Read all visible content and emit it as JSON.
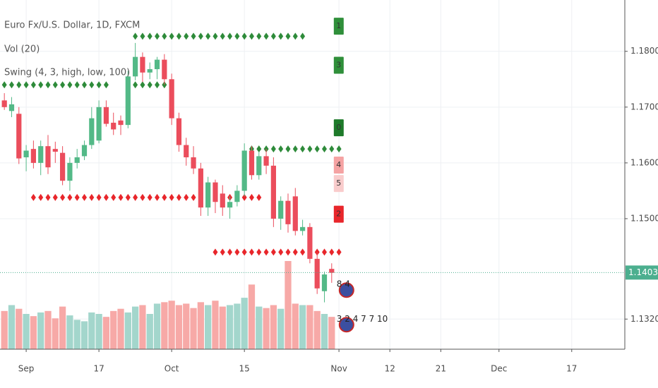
{
  "chart_data": {
    "type": "candlestick",
    "legend": [
      "Euro Fx/U.S. Dollar, 1D, FXCM",
      "Vol (20)",
      "Swing (4, 3, high, low, 100)"
    ],
    "xlim": [
      -3.6,
      82.3
    ],
    "ylim": [
      1.1266,
      1.1892
    ],
    "xticks": [
      {
        "value": 0,
        "label": "Sep"
      },
      {
        "value": 10,
        "label": "17"
      },
      {
        "value": 20,
        "label": "Oct"
      },
      {
        "value": 30,
        "label": "15"
      },
      {
        "value": 43,
        "label": "Nov"
      },
      {
        "value": 50,
        "label": "12"
      },
      {
        "value": 57,
        "label": "21"
      },
      {
        "value": 65,
        "label": "Dec"
      },
      {
        "value": 75,
        "label": "17"
      }
    ],
    "yticks": [
      {
        "value": 1.18,
        "label": "1.18000"
      },
      {
        "value": 1.17,
        "label": "1.17000"
      },
      {
        "value": 1.16,
        "label": "1.16000"
      },
      {
        "value": 1.15,
        "label": "1.15000"
      },
      {
        "value": 1.132,
        "label": "1.13200"
      }
    ],
    "last_price": {
      "value": 1.14034,
      "label": "1.14034",
      "color": "#4caf8f"
    },
    "grid": true,
    "up_color": "#53b987",
    "down_color": "#eb4d5c",
    "volume_up_color": "#a3d6cc",
    "volume_down_color": "#f7a9a7",
    "candles": {
      "x": [
        -3,
        -2,
        -1,
        0,
        1,
        2,
        3,
        4,
        5,
        6,
        7,
        8,
        9,
        10,
        11,
        12,
        13,
        14,
        15,
        16,
        17,
        18,
        19,
        20,
        21,
        22,
        23,
        24,
        25,
        26,
        27,
        28,
        29,
        30,
        31,
        32,
        33,
        34,
        35,
        36,
        37,
        38,
        39,
        40,
        41,
        42
      ],
      "open": [
        1.1712,
        1.1693,
        1.1688,
        1.161,
        1.1625,
        1.16,
        1.163,
        1.1625,
        1.1618,
        1.1568,
        1.16,
        1.1612,
        1.1632,
        1.164,
        1.17,
        1.1672,
        1.1676,
        1.1668,
        1.1755,
        1.179,
        1.1762,
        1.1768,
        1.1785,
        1.175,
        1.168,
        1.1632,
        1.161,
        1.159,
        1.152,
        1.1565,
        1.1545,
        1.152,
        1.153,
        1.155,
        1.1622,
        1.1578,
        1.1612,
        1.1595,
        1.15,
        1.1532,
        1.154,
        1.1478,
        1.1485,
        1.1428,
        1.137,
        1.141
      ],
      "high": [
        1.1725,
        1.1718,
        1.17,
        1.1632,
        1.164,
        1.164,
        1.165,
        1.1638,
        1.163,
        1.161,
        1.1625,
        1.164,
        1.17,
        1.1712,
        1.1712,
        1.169,
        1.1685,
        1.1765,
        1.1815,
        1.1798,
        1.178,
        1.179,
        1.1795,
        1.176,
        1.169,
        1.1645,
        1.163,
        1.16,
        1.1575,
        1.157,
        1.156,
        1.154,
        1.156,
        1.1635,
        1.163,
        1.162,
        1.1625,
        1.161,
        1.154,
        1.1545,
        1.1555,
        1.1498,
        1.1492,
        1.144,
        1.1405,
        1.142
      ],
      "low": [
        1.1695,
        1.1682,
        1.1598,
        1.1585,
        1.159,
        1.1578,
        1.158,
        1.16,
        1.156,
        1.155,
        1.159,
        1.1605,
        1.1625,
        1.1635,
        1.1665,
        1.165,
        1.165,
        1.1662,
        1.1748,
        1.1745,
        1.175,
        1.175,
        1.174,
        1.1668,
        1.162,
        1.1595,
        1.158,
        1.1505,
        1.1505,
        1.151,
        1.1505,
        1.15,
        1.1522,
        1.154,
        1.157,
        1.157,
        1.158,
        1.1485,
        1.148,
        1.1475,
        1.147,
        1.147,
        1.142,
        1.1365,
        1.135,
        1.1385
      ],
      "close": [
        1.17,
        1.1705,
        1.1608,
        1.1622,
        1.16,
        1.163,
        1.1592,
        1.162,
        1.1568,
        1.16,
        1.161,
        1.1632,
        1.168,
        1.17,
        1.167,
        1.166,
        1.1668,
        1.1755,
        1.179,
        1.1762,
        1.1768,
        1.1785,
        1.175,
        1.168,
        1.1632,
        1.161,
        1.159,
        1.152,
        1.1565,
        1.153,
        1.152,
        1.153,
        1.155,
        1.1622,
        1.1578,
        1.1612,
        1.1595,
        1.15,
        1.1532,
        1.149,
        1.1478,
        1.1485,
        1.1428,
        1.1375,
        1.14,
        1.1403
      ],
      "volume": [
        52,
        60,
        55,
        48,
        45,
        50,
        52,
        42,
        58,
        46,
        40,
        38,
        50,
        48,
        44,
        52,
        55,
        50,
        58,
        60,
        48,
        62,
        64,
        66,
        60,
        62,
        56,
        64,
        60,
        66,
        58,
        60,
        62,
        70,
        88,
        58,
        56,
        60,
        55,
        120,
        62,
        60,
        60,
        52,
        48,
        44
      ]
    },
    "swings": [
      {
        "color": "#2e8b3a",
        "level": 1.1827,
        "start": 15,
        "end": 38
      },
      {
        "color": "#2e8b3a",
        "level": 1.174,
        "start": -3,
        "end": 11
      },
      {
        "color": "#2e8b3a",
        "level": 1.174,
        "start": 15,
        "end": 20
      },
      {
        "color": "#2e8b3a",
        "level": 1.1625,
        "start": 31,
        "end": 43
      },
      {
        "color": "#e8262b",
        "level": 1.1538,
        "start": 1,
        "end": 32
      },
      {
        "color": "#e8262b",
        "level": 1.144,
        "start": 26,
        "end": 43
      }
    ],
    "markers": [
      {
        "label": "1",
        "price": 1.1845,
        "color": "#2f8f3a"
      },
      {
        "label": "3",
        "price": 1.1775,
        "color": "#2f8f3a"
      },
      {
        "label": "0",
        "price": 1.1663,
        "color": "#1e7a2a"
      },
      {
        "label": "4",
        "price": 1.1596,
        "color": "#f5a3a3"
      },
      {
        "label": "5",
        "price": 1.1563,
        "color": "#f9cccc"
      },
      {
        "label": "2",
        "price": 1.1508,
        "color": "#e8262b"
      }
    ],
    "events": [
      {
        "label": "8 4",
        "price": 1.1377
      },
      {
        "label": "3 2 4 7 7 10",
        "price": 1.1315
      }
    ]
  }
}
